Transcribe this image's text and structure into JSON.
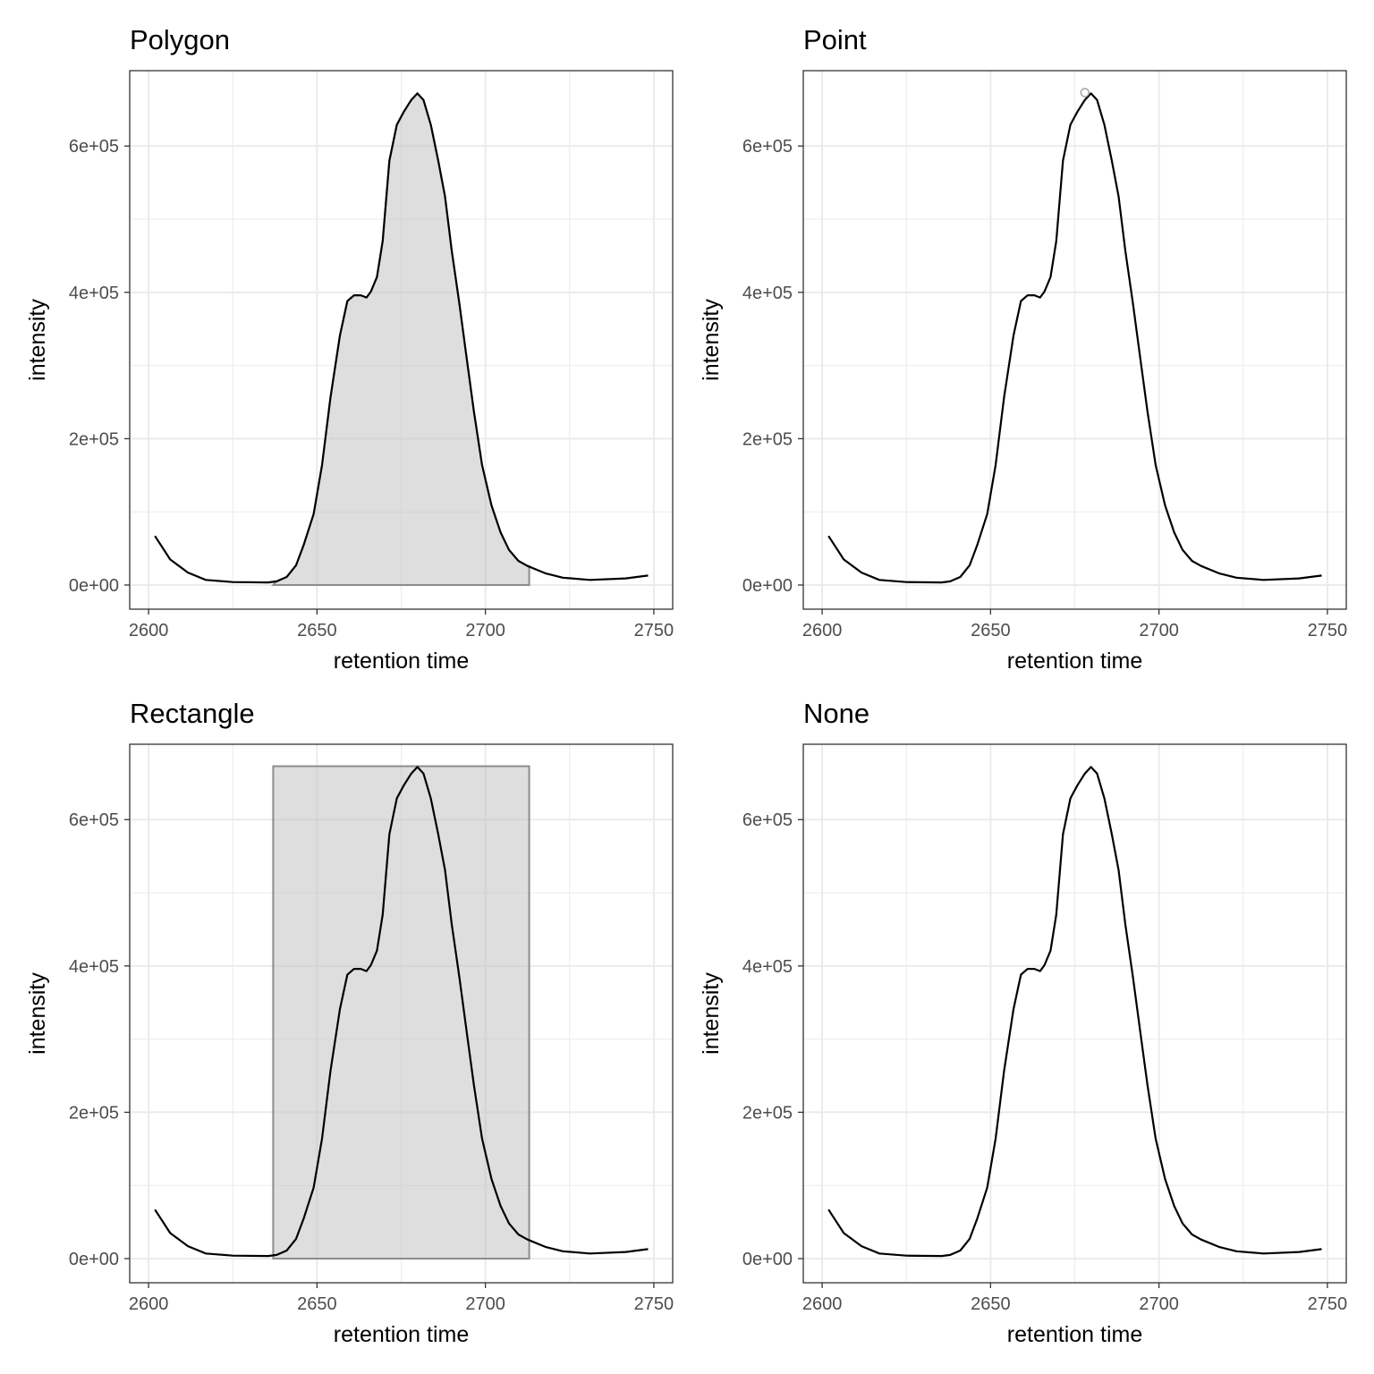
{
  "chart_data": [
    {
      "type": "line",
      "title": "Polygon",
      "xlabel": "retention time",
      "ylabel": "intensity",
      "annotation": "polygon",
      "grid": true
    },
    {
      "type": "line",
      "title": "Point",
      "xlabel": "retention time",
      "ylabel": "intensity",
      "annotation": "point",
      "grid": true
    },
    {
      "type": "line",
      "title": "Rectangle",
      "xlabel": "retention time",
      "ylabel": "intensity",
      "annotation": "rectangle",
      "grid": true
    },
    {
      "type": "line",
      "title": "None",
      "xlabel": "retention time",
      "ylabel": "intensity",
      "annotation": "none",
      "grid": true
    }
  ],
  "shared": {
    "xlim": [
      2594.4,
      2755.6
    ],
    "ylim": [
      -33000,
      703000
    ],
    "x_ticks": [
      2600,
      2650,
      2700,
      2750
    ],
    "x_tick_labels": [
      "2600",
      "2650",
      "2700",
      "2750"
    ],
    "y_ticks": [
      0,
      200000,
      400000,
      600000
    ],
    "y_tick_labels": [
      "0e+00",
      "2e+05",
      "4e+05",
      "6e+05"
    ],
    "x": [
      2601.9,
      2606.4,
      2611.7,
      2617,
      2625,
      2635.5,
      2638,
      2641,
      2643.8,
      2646,
      2649,
      2651.5,
      2654,
      2656.8,
      2659,
      2661,
      2663,
      2664.7,
      2666,
      2667.8,
      2669.5,
      2671.5,
      2673.7,
      2675.8,
      2678,
      2679.8,
      2681.6,
      2683.8,
      2686,
      2688,
      2690,
      2692.3,
      2694.4,
      2696.6,
      2699,
      2701.8,
      2704.5,
      2707,
      2709.8,
      2712.5,
      2717.8,
      2723,
      2731,
      2741.6,
      2748.3
    ],
    "y": [
      67000,
      35000,
      17000,
      7000,
      4000,
      3500,
      5000,
      11000,
      27000,
      54000,
      97000,
      164000,
      256000,
      341000,
      388000,
      396000,
      396000,
      393000,
      401000,
      421000,
      470000,
      580000,
      629000,
      647000,
      663000,
      672000,
      663000,
      629000,
      580000,
      531000,
      457000,
      384000,
      311000,
      237000,
      164000,
      109000,
      72000,
      48000,
      33000,
      26000,
      16000,
      10000,
      7000,
      9000,
      13000
    ],
    "peak_bounds": [
      2637,
      2713
    ],
    "peak_apex": [
      2678,
      673000
    ],
    "line_color": "#000000",
    "fill_color": "#bebebe",
    "border_color": "#8c8c8c",
    "grid_color": "#ebebeb"
  }
}
